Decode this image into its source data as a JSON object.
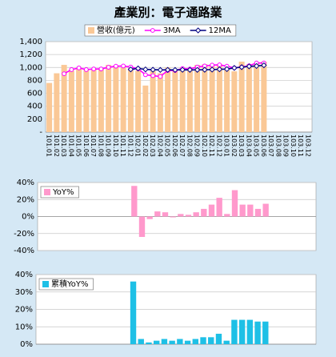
{
  "chart_data": [
    {
      "type": "combo",
      "title": "產業別：電子通路業",
      "categories": [
        "101.01",
        "101.02",
        "101.03",
        "101.04",
        "101.05",
        "101.06",
        "101.07",
        "101.08",
        "101.09",
        "101.10",
        "101.11",
        "101.12",
        "102.01",
        "102.02",
        "102.03",
        "102.04",
        "102.05",
        "102.06",
        "102.07",
        "102.08",
        "102.09",
        "102.10",
        "102.11",
        "102.12",
        "103.01",
        "103.02",
        "103.03",
        "103.04",
        "103.05",
        "103.06",
        "103.07",
        "103.08",
        "103.09",
        "103.10",
        "103.11",
        "103.12"
      ],
      "series": [
        {
          "name": "營收(億元)",
          "type": "bar",
          "color": "#fac896",
          "values": [
            760,
            910,
            1040,
            950,
            990,
            960,
            980,
            990,
            1040,
            1030,
            1000,
            990,
            950,
            720,
            950,
            910,
            1000,
            950,
            1000,
            980,
            1040,
            1050,
            1020,
            1050,
            990,
            940,
            1090,
            1050,
            1070,
            1090,
            null,
            null,
            null,
            null,
            null,
            null
          ]
        },
        {
          "name": "3MA",
          "type": "line",
          "marker": "circle",
          "color": "#ff00ff",
          "values": [
            null,
            null,
            903,
            967,
            993,
            967,
            977,
            977,
            1003,
            1020,
            1023,
            1007,
            980,
            887,
            873,
            860,
            953,
            953,
            983,
            977,
            1007,
            1023,
            1037,
            1040,
            1020,
            993,
            1007,
            1027,
            1070,
            1070,
            null,
            null,
            null,
            null,
            null,
            null
          ]
        },
        {
          "name": "12MA",
          "type": "line",
          "marker": "diamond",
          "color": "#000080",
          "values": [
            null,
            null,
            null,
            null,
            null,
            null,
            null,
            null,
            null,
            null,
            null,
            970,
            985,
            970,
            965,
            962,
            963,
            962,
            964,
            963,
            963,
            965,
            967,
            972,
            975,
            993,
            1005,
            1017,
            1023,
            1034,
            null,
            null,
            null,
            null,
            null,
            null
          ]
        }
      ],
      "ylim": [
        0,
        1400
      ],
      "yticks": [
        {
          "value": 0,
          "label": "-"
        },
        200,
        400,
        600,
        800,
        {
          "value": 1000,
          "label": "1,000"
        },
        {
          "value": 1200,
          "label": "1,200"
        },
        {
          "value": 1400,
          "label": "1,400"
        }
      ],
      "grid": true,
      "legend": "top"
    },
    {
      "type": "bar",
      "series": [
        {
          "name": "YoY%",
          "color": "#ff99cc",
          "values": [
            null,
            null,
            null,
            null,
            null,
            null,
            null,
            null,
            null,
            null,
            null,
            null,
            36,
            -24,
            -3,
            6,
            5,
            -1,
            3,
            2,
            5,
            9,
            14,
            22,
            3,
            31,
            14,
            14,
            9,
            15,
            null,
            null,
            null,
            null,
            null,
            null
          ]
        }
      ],
      "ylim": [
        -40,
        40
      ],
      "yticks": [
        {
          "value": -40,
          "label": "-40%"
        },
        {
          "value": -20,
          "label": "-20%"
        },
        {
          "value": 0,
          "label": "0%"
        },
        {
          "value": 20,
          "label": "20%"
        },
        {
          "value": 40,
          "label": "40%"
        }
      ],
      "grid": true,
      "legend": "top-left"
    },
    {
      "type": "bar",
      "series": [
        {
          "name": "累積YoY%",
          "color": "#1ec0e6",
          "values": [
            null,
            null,
            null,
            null,
            null,
            null,
            null,
            null,
            null,
            null,
            null,
            null,
            36,
            3,
            1,
            2,
            3,
            2,
            3,
            2,
            3,
            4,
            4,
            6,
            2,
            14,
            14,
            14,
            13,
            13,
            null,
            null,
            null,
            null,
            null,
            null
          ]
        }
      ],
      "ylim": [
        0,
        40
      ],
      "yticks": [
        {
          "value": 0,
          "label": "0%"
        },
        {
          "value": 10,
          "label": "10%"
        },
        {
          "value": 20,
          "label": "20%"
        },
        {
          "value": 30,
          "label": "30%"
        },
        {
          "value": 40,
          "label": "40%"
        }
      ],
      "grid": true,
      "legend": "top-left"
    }
  ]
}
